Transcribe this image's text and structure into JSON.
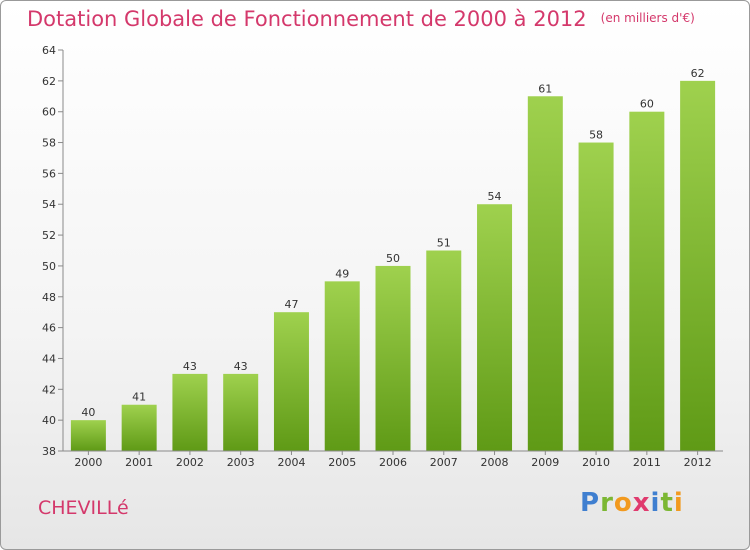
{
  "chart_data": {
    "type": "bar",
    "title": "Dotation Globale de Fonctionnement de 2000 à 2012",
    "subtitle": "(en milliers d'€)",
    "categories": [
      "2000",
      "2001",
      "2002",
      "2003",
      "2004",
      "2005",
      "2006",
      "2007",
      "2008",
      "2009",
      "2010",
      "2011",
      "2012"
    ],
    "values": [
      40,
      41,
      43,
      43,
      47,
      49,
      50,
      51,
      54,
      61,
      58,
      60,
      62
    ],
    "ylim": [
      38,
      64
    ],
    "yticks": [
      38,
      40,
      42,
      44,
      46,
      48,
      50,
      52,
      54,
      56,
      58,
      60,
      62,
      64
    ],
    "grid": false,
    "bar_color_top": "#9fd14e",
    "bar_color_bottom": "#5f9a16"
  },
  "commune": "CHEVILLé",
  "logo": {
    "text": "Proxiti",
    "letters": [
      {
        "ch": "P",
        "color": "#3f7fd0"
      },
      {
        "ch": "r",
        "color": "#7cb733"
      },
      {
        "ch": "o",
        "color": "#f29a1f"
      },
      {
        "ch": "x",
        "color": "#e03a6e"
      },
      {
        "ch": "i",
        "color": "#3f7fd0"
      },
      {
        "ch": "t",
        "color": "#7cb733"
      },
      {
        "ch": "i",
        "color": "#f29a1f"
      }
    ]
  }
}
